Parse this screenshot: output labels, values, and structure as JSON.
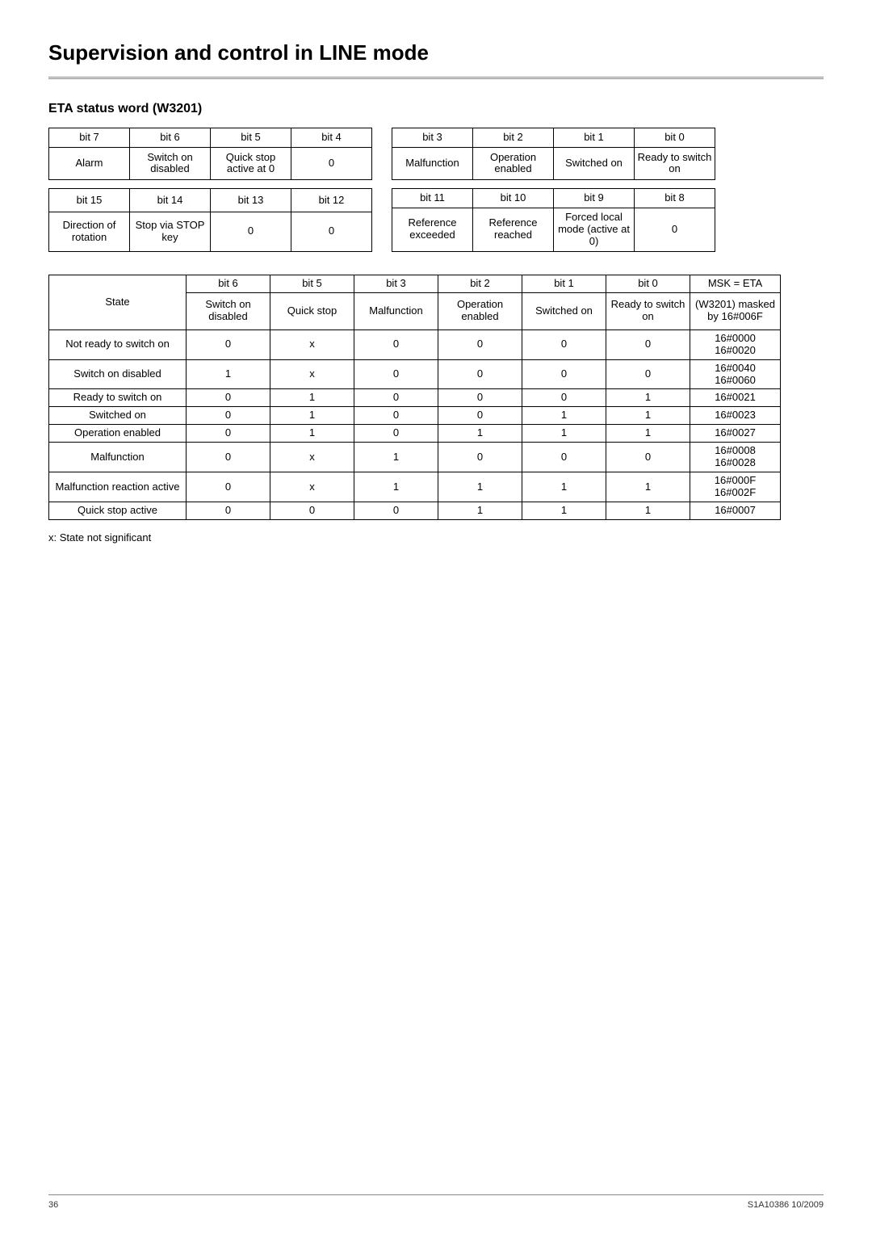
{
  "page": {
    "title": "Supervision and control in LINE mode",
    "subtitle": "ETA status word (W3201)",
    "footnote": "x: State not significant",
    "page_number": "36",
    "doc_ref": "S1A10386  10/2009"
  },
  "bits_high": {
    "headers": [
      "bit 7",
      "bit 6",
      "bit 5",
      "bit 4"
    ],
    "values": [
      "Alarm",
      "Switch on disabled",
      "Quick stop active at 0",
      "0"
    ]
  },
  "bits_low": {
    "headers": [
      "bit 3",
      "bit 2",
      "bit 1",
      "bit 0"
    ],
    "values": [
      "Malfunction",
      "Operation enabled",
      "Switched on",
      "Ready to switch on"
    ]
  },
  "bits_high2": {
    "headers": [
      "bit 15",
      "bit 14",
      "bit 13",
      "bit 12"
    ],
    "values": [
      "Direction of rotation",
      "Stop via STOP key",
      "0",
      "0"
    ]
  },
  "bits_low2": {
    "headers": [
      "bit 11",
      "bit 10",
      "bit 9",
      "bit 8"
    ],
    "values": [
      "Reference exceeded",
      "Reference reached",
      "Forced local mode (active at 0)",
      "0"
    ]
  },
  "state_table": {
    "col_headers_top": [
      "bit 6",
      "bit 5",
      "bit 3",
      "bit 2",
      "bit 1",
      "bit 0",
      "MSK = ETA"
    ],
    "state_label": "State",
    "col_headers_bottom": [
      "Switch on disabled",
      "Quick stop",
      "Malfunction",
      "Operation enabled",
      "Switched on",
      "Ready to switch on",
      "(W3201) masked by 16#006F"
    ],
    "rows": [
      {
        "state": "Not ready to switch on",
        "cells": [
          "0",
          "x",
          "0",
          "0",
          "0",
          "0",
          "16#0000\n16#0020"
        ]
      },
      {
        "state": "Switch on disabled",
        "cells": [
          "1",
          "x",
          "0",
          "0",
          "0",
          "0",
          "16#0040\n16#0060"
        ]
      },
      {
        "state": "Ready to switch on",
        "cells": [
          "0",
          "1",
          "0",
          "0",
          "0",
          "1",
          "16#0021"
        ]
      },
      {
        "state": "Switched on",
        "cells": [
          "0",
          "1",
          "0",
          "0",
          "1",
          "1",
          "16#0023"
        ]
      },
      {
        "state": "Operation enabled",
        "cells": [
          "0",
          "1",
          "0",
          "1",
          "1",
          "1",
          "16#0027"
        ]
      },
      {
        "state": "Malfunction",
        "cells": [
          "0",
          "x",
          "1",
          "0",
          "0",
          "0",
          "16#0008\n16#0028"
        ]
      },
      {
        "state": "Malfunction reaction active",
        "cells": [
          "0",
          "x",
          "1",
          "1",
          "1",
          "1",
          "16#000F\n16#002F"
        ]
      },
      {
        "state": "Quick stop active",
        "cells": [
          "0",
          "0",
          "0",
          "1",
          "1",
          "1",
          "16#0007"
        ]
      }
    ]
  }
}
